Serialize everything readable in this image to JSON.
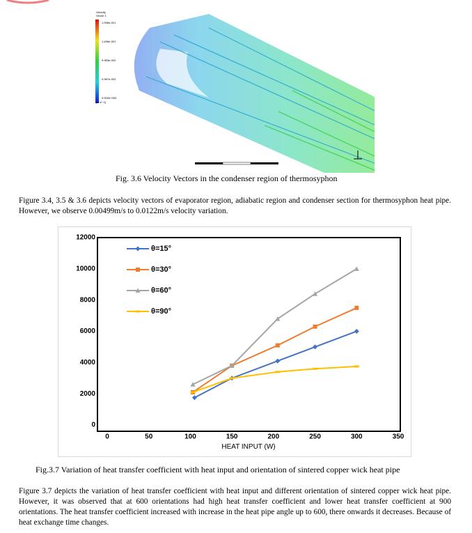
{
  "figure_1": {
    "brand": "ANSYS",
    "legend_title": [
      "Velocity",
      "Vector 1"
    ],
    "legend_labels": [
      "1.996e-001",
      "1.498e-001",
      "9.983e-002",
      "4.987e-002",
      "0.000e+000",
      "[m s^-1]"
    ],
    "caption": "Fig. 3.6 Velocity Vectors in the condenser region of thermosyphon"
  },
  "paragraph_1": "Figure 3.4, 3.5 & 3.6 depicts velocity vectors of evaporator region, adiabatic region and condenser section for thermosyphon heat pipe. However, we observe 0.00499m/s to 0.0122m/s velocity variation.",
  "chart_data": {
    "type": "line",
    "x_label": "HEAT INPUT (W)",
    "xlim": [
      0,
      350
    ],
    "xticks": [
      0,
      50,
      100,
      150,
      200,
      250,
      300,
      350
    ],
    "ylim": [
      0,
      12000
    ],
    "yticks": [
      0,
      2000,
      4000,
      6000,
      8000,
      10000,
      12000
    ],
    "legend": "upper left",
    "series": [
      {
        "name": "θ=15°",
        "color": "#4472c4",
        "marker": "diamond",
        "x": [
          105,
          150,
          205,
          250,
          300
        ],
        "values": [
          1750,
          3000,
          4100,
          5000,
          6000
        ]
      },
      {
        "name": "θ=30°",
        "color": "#ed7d31",
        "marker": "square",
        "x": [
          103,
          150,
          205,
          250,
          300
        ],
        "values": [
          2100,
          3800,
          5100,
          6300,
          7500
        ]
      },
      {
        "name": "θ=60°",
        "color": "#a5a5a5",
        "marker": "triangle",
        "x": [
          103,
          150,
          205,
          250,
          300
        ],
        "values": [
          2600,
          3800,
          6800,
          8400,
          10000
        ]
      },
      {
        "name": "θ=90°",
        "color": "#ffc000",
        "marker": "dash",
        "x": [
          103,
          150,
          205,
          250,
          300
        ],
        "values": [
          2100,
          3000,
          3400,
          3600,
          3750
        ]
      }
    ]
  },
  "figure_2_caption": "Fig.3.7 Variation of heat transfer coefficient with heat input and orientation of sintered copper wick heat pipe",
  "paragraph_2": "Figure 3.7 depicts the variation of heat transfer coefficient with heat input and different orientation of sintered copper wick heat pipe. However, it was observed that at 600 orientations had high heat transfer coefficient and lower heat transfer coefficient at 900 orientations. The heat transfer coefficient increased with increase in the heat pipe angle up to 600, there onwards it decreases. Because of heat exchange time changes."
}
